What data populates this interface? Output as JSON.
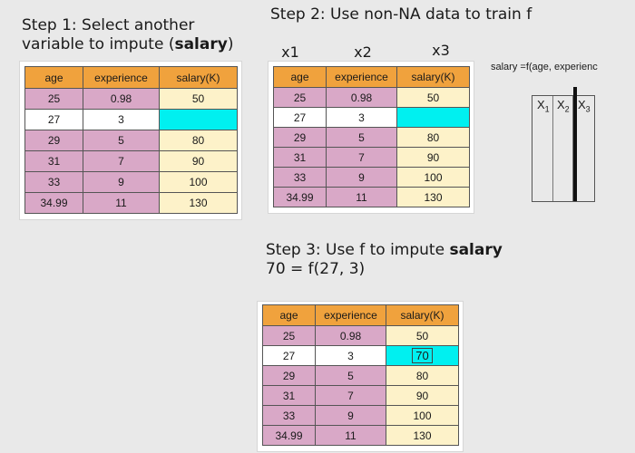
{
  "step1": {
    "line1": "Step 1: Select another",
    "line2_prefix": "variable to impute (",
    "line2_bold": "salary",
    "line2_suffix": ")"
  },
  "step2": {
    "title": "Step 2: Use non-NA data to train f",
    "x_labels": [
      "x1",
      "x2",
      "x3"
    ],
    "formula": "salary =f(age, experienc",
    "matrix_headers": [
      {
        "base": "X",
        "sub": "1"
      },
      {
        "base": "X",
        "sub": "2"
      },
      {
        "base": "X",
        "sub": "3"
      }
    ]
  },
  "step3": {
    "title_prefix": "Step 3: Use f to impute ",
    "title_bold": "salary",
    "equation": "70 = f(27, 3)"
  },
  "table": {
    "headers": [
      "age",
      "experience",
      "salary(K)"
    ],
    "rows": [
      {
        "age": "25",
        "experience": "0.98",
        "salary": "50"
      },
      {
        "age": "27",
        "experience": "3",
        "salary": ""
      },
      {
        "age": "29",
        "experience": "5",
        "salary": "80"
      },
      {
        "age": "31",
        "experience": "7",
        "salary": "90"
      },
      {
        "age": "33",
        "experience": "9",
        "salary": "100"
      },
      {
        "age": "34.99",
        "experience": "11",
        "salary": "130"
      }
    ]
  },
  "imputed_value": "70",
  "colors": {
    "header": "#f0a23d",
    "feature_cells": "#d9a8c7",
    "target_cells": "#fdf2c9",
    "missing_cell": "#00f0f0"
  }
}
